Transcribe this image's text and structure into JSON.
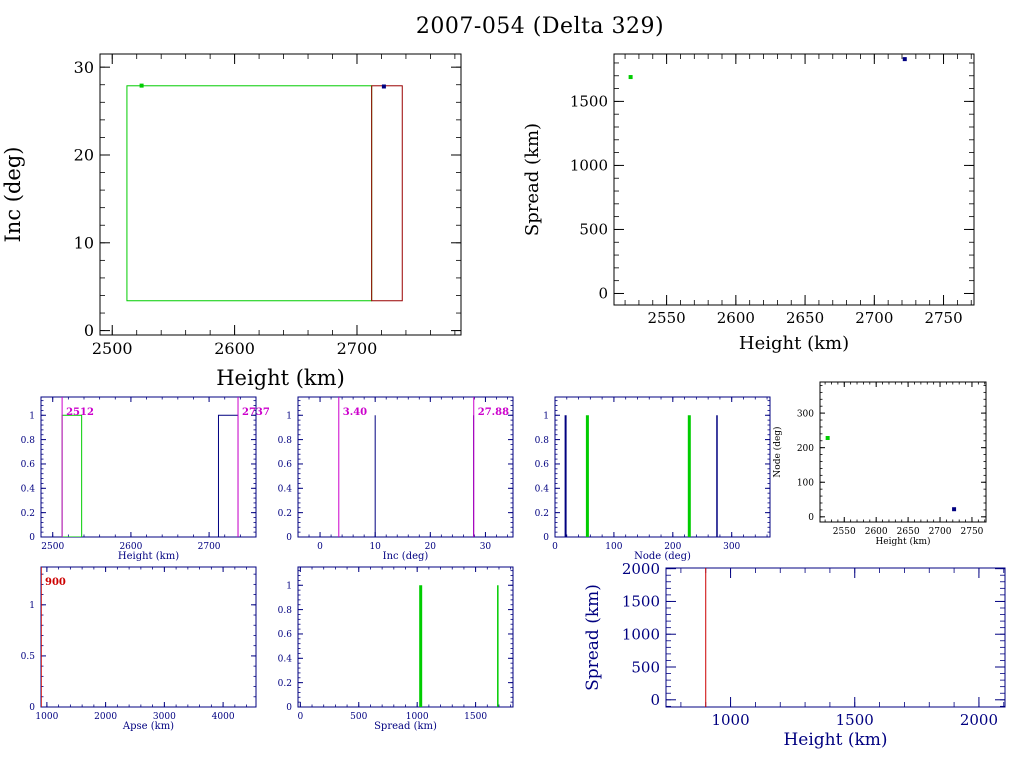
{
  "title": "2007-054 (Delta 329)",
  "chart_data": [
    {
      "id": "inc_vs_height",
      "type": "scatter",
      "xlabel": "Height (km)",
      "ylabel": "Inc (deg)",
      "xlim": [
        2490,
        2785
      ],
      "ylim": [
        -0.5,
        31.5
      ],
      "xticks": [
        2500,
        2600,
        2700
      ],
      "yticks": [
        0,
        10,
        20,
        30
      ],
      "points": [
        {
          "x": 2524,
          "y": 27.9,
          "color": "#00cc00"
        },
        {
          "x": 2722,
          "y": 27.8,
          "color": "#000080"
        }
      ],
      "boxes": [
        {
          "x0": 2512,
          "x1": 2712,
          "y0": 3.4,
          "y1": 27.88,
          "color": "#00cc00"
        },
        {
          "x0": 2712,
          "x1": 2737,
          "y0": 3.4,
          "y1": 27.88,
          "color": "#990000"
        }
      ]
    },
    {
      "id": "spread_vs_height",
      "type": "scatter",
      "xlabel": "Height (km)",
      "ylabel": "Spread (km)",
      "xlim": [
        2512,
        2772
      ],
      "ylim": [
        -90,
        1870
      ],
      "xticks": [
        2550,
        2600,
        2650,
        2700,
        2750
      ],
      "yticks": [
        0,
        500,
        1000,
        1500
      ],
      "points": [
        {
          "x": 2524,
          "y": 1690,
          "color": "#00cc00"
        },
        {
          "x": 2722,
          "y": 1830,
          "color": "#000080"
        }
      ]
    },
    {
      "id": "height_hist",
      "type": "bar",
      "xlabel": "Height (km)",
      "xlim": [
        2485,
        2760
      ],
      "ylim": [
        0,
        1.15
      ],
      "xticks": [
        2500,
        2600,
        2700
      ],
      "yticks": [
        0,
        0.2,
        0.4,
        0.6,
        0.8,
        1
      ],
      "bars": [
        {
          "x0": 2512,
          "x1": 2537,
          "h": 1,
          "color": "#00cc00"
        },
        {
          "x0": 2712,
          "x1": 2737,
          "h": 1,
          "color": "#000080"
        }
      ],
      "markers": [
        {
          "x": 2512,
          "label": "2512",
          "side": "right"
        },
        {
          "x": 2737,
          "label": "2737",
          "side": "right"
        }
      ]
    },
    {
      "id": "inc_hist",
      "type": "bar",
      "xlabel": "Inc (deg)",
      "xlim": [
        -4,
        35
      ],
      "ylim": [
        0,
        1.15
      ],
      "xticks": [
        0,
        10,
        20,
        30
      ],
      "yticks": [
        0,
        0.2,
        0.4,
        0.6,
        0.8,
        1
      ],
      "lines": [
        {
          "x": 10,
          "h": 1,
          "color": "#000080"
        },
        {
          "x": 27.85,
          "h": 1,
          "color": "#000080"
        }
      ],
      "markers": [
        {
          "x": 3.4,
          "label": "3.40",
          "side": "right"
        },
        {
          "x": 27.88,
          "label": "27.88",
          "side": "right"
        }
      ]
    },
    {
      "id": "node_hist",
      "type": "bar",
      "xlabel": "Node (deg)",
      "xlim": [
        0,
        365
      ],
      "ylim": [
        0,
        1.15
      ],
      "xticks": [
        0,
        100,
        200,
        300
      ],
      "yticks": [
        0,
        0.2,
        0.4,
        0.6,
        0.8,
        1
      ],
      "lines": [
        {
          "x": 18,
          "h": 1,
          "color": "#000080",
          "w": 2
        },
        {
          "x": 55,
          "h": 1,
          "color": "#00cc00",
          "w": 3
        },
        {
          "x": 228,
          "h": 1,
          "color": "#00cc00",
          "w": 3
        },
        {
          "x": 275,
          "h": 1,
          "color": "#000080",
          "w": 1.5
        }
      ]
    },
    {
      "id": "node_vs_height",
      "type": "scatter",
      "xlabel": "Height (km)",
      "ylabel": "Node (deg)",
      "xlim": [
        2512,
        2772
      ],
      "ylim": [
        -15,
        390
      ],
      "xticks": [
        2550,
        2600,
        2650,
        2700,
        2750
      ],
      "yticks": [
        0,
        100,
        200,
        300
      ],
      "points": [
        {
          "x": 2524,
          "y": 228,
          "color": "#00cc00"
        },
        {
          "x": 2722,
          "y": 22,
          "color": "#000080"
        }
      ]
    },
    {
      "id": "apse_hist",
      "type": "bar",
      "xlabel": "Apse (km)",
      "xlim": [
        900,
        4560
      ],
      "ylim": [
        0,
        1.37
      ],
      "xticks": [
        1000,
        2000,
        3000,
        4000
      ],
      "yticks": [
        0,
        0.5,
        1
      ],
      "lines": [
        {
          "x": 900,
          "h": 1.37,
          "color": "#cc0000",
          "w": 1.5
        }
      ],
      "markers": [
        {
          "x": 900,
          "label": "900",
          "side": "right",
          "color": "#cc0000"
        }
      ]
    },
    {
      "id": "spread_hist",
      "type": "bar",
      "xlabel": "Spread (km)",
      "xlim": [
        -20,
        1820
      ],
      "ylim": [
        0,
        1.15
      ],
      "xticks": [
        0,
        500,
        1000,
        1500
      ],
      "yticks": [
        0,
        0.2,
        0.4,
        0.6,
        0.8,
        1
      ],
      "lines": [
        {
          "x": 1030,
          "h": 1,
          "color": "#00cc00",
          "w": 3
        },
        {
          "x": 1690,
          "h": 1,
          "color": "#00cc00",
          "w": 1.5
        }
      ]
    },
    {
      "id": "spread_vs_height_2",
      "type": "line",
      "xlabel": "Height (km)",
      "ylabel": "Spread (km)",
      "xlim": [
        740,
        2105
      ],
      "ylim": [
        -110,
        2010
      ],
      "xticks": [
        1000,
        1500,
        2000
      ],
      "yticks": [
        0,
        500,
        1000,
        1500,
        2000
      ],
      "vlines": [
        {
          "x": 900,
          "y0": -110,
          "y1": 2010,
          "color": "#cc0000"
        }
      ]
    }
  ]
}
